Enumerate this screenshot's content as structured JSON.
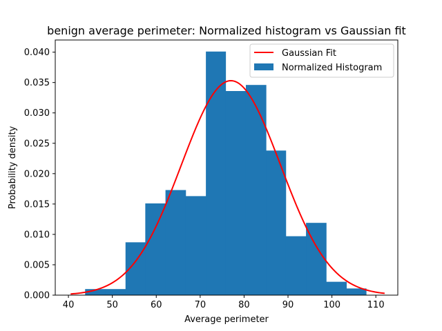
{
  "chart_data": {
    "type": "bar",
    "title": "benign average perimeter: Normalized histogram vs Gaussian fit",
    "xlabel": "Average perimeter",
    "ylabel": "Probability density",
    "xlim": [
      37,
      115
    ],
    "ylim": [
      0,
      0.042
    ],
    "grid": false,
    "legend_position": "top-right",
    "histogram": {
      "name": "Normalized Histogram",
      "color": "#1f77b4",
      "bin_edges": [
        43.8,
        48.4,
        53.0,
        57.5,
        62.1,
        66.7,
        71.3,
        75.8,
        80.4,
        85.0,
        89.5,
        94.1,
        98.7,
        103.3,
        107.8
      ],
      "values": [
        0.001,
        0.001,
        0.0087,
        0.0151,
        0.0173,
        0.0163,
        0.0401,
        0.0336,
        0.0346,
        0.0238,
        0.0097,
        0.0119,
        0.0022,
        0.0011
      ]
    },
    "gaussian_fit": {
      "name": "Gaussian Fit",
      "color": "#ff0000",
      "mean": 77.0,
      "std": 11.3,
      "x_range": [
        40.5,
        112.0
      ]
    },
    "x_ticks": [
      40,
      50,
      60,
      70,
      80,
      90,
      100,
      110
    ],
    "y_ticks": [
      0.0,
      0.005,
      0.01,
      0.015,
      0.02,
      0.025,
      0.03,
      0.035,
      0.04
    ],
    "y_tick_labels": [
      "0.000",
      "0.005",
      "0.010",
      "0.015",
      "0.020",
      "0.025",
      "0.030",
      "0.035",
      "0.040"
    ]
  }
}
